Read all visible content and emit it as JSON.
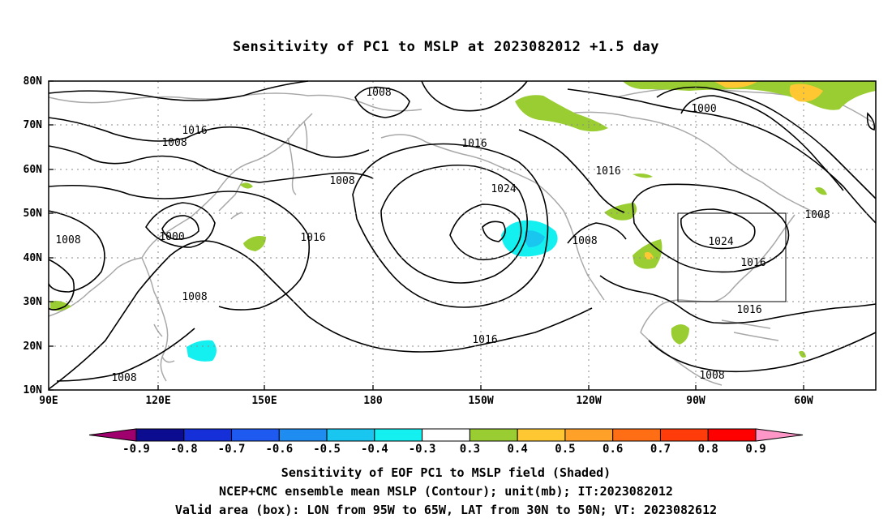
{
  "title": "Sensitivity of PC1 to MSLP at 2023082012 +1.5 day",
  "axes": {
    "lat_labels": [
      "80N",
      "70N",
      "60N",
      "50N",
      "40N",
      "30N",
      "20N",
      "10N"
    ],
    "lon_labels": [
      "90E",
      "120E",
      "150E",
      "180",
      "150W",
      "120W",
      "90W",
      "60W"
    ]
  },
  "contour_labels": [
    {
      "text": "1008"
    },
    {
      "text": "1016"
    },
    {
      "text": "1008"
    },
    {
      "text": "1016"
    },
    {
      "text": "1008"
    },
    {
      "text": "1024"
    },
    {
      "text": "1000"
    },
    {
      "text": "1016"
    },
    {
      "text": "1008"
    },
    {
      "text": "1000"
    },
    {
      "text": "1008"
    },
    {
      "text": "1016"
    },
    {
      "text": "1008"
    },
    {
      "text": "1024"
    },
    {
      "text": "1016"
    },
    {
      "text": "1016"
    },
    {
      "text": "1008"
    },
    {
      "text": "1008"
    },
    {
      "text": "1016"
    },
    {
      "text": "1008"
    }
  ],
  "colorbar": {
    "labels": [
      "-0.9",
      "-0.8",
      "-0.7",
      "-0.6",
      "-0.5",
      "-0.4",
      "-0.3",
      "0.3",
      "0.4",
      "0.5",
      "0.6",
      "0.7",
      "0.8",
      "0.9"
    ],
    "colors": [
      "#a0006e",
      "#0c0c90",
      "#1530d8",
      "#1e5af0",
      "#1e8cf0",
      "#18c6f0",
      "#14f0f0",
      "#ffffff",
      "#9acd32",
      "#ffc832",
      "#ffa028",
      "#ff6e14",
      "#ff3c0a",
      "#ff0000",
      "#ff96c8"
    ]
  },
  "captions": {
    "line1": "Sensitivity of EOF PC1 to MSLP field (Shaded)",
    "line2": "NCEP+CMC ensemble mean MSLP (Contour); unit(mb); IT:2023082012",
    "line3": "Valid area (box): LON from 95W to 65W, LAT from 30N to 50N; VT: 2023082612"
  }
}
